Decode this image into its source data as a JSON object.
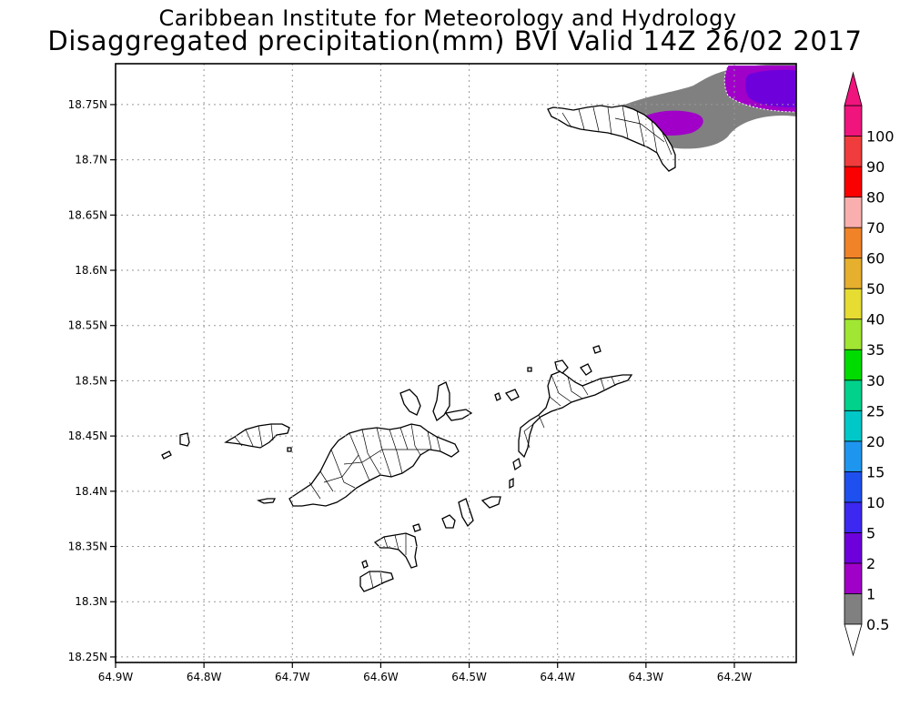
{
  "title": {
    "line1": "Caribbean Institute for Meteorology and Hydrology",
    "line2": "Disaggregated precipitation(mm) BVI Valid 14Z 26/02 2017"
  },
  "map": {
    "lon_range": [
      -64.9,
      -64.13
    ],
    "lat_range": [
      18.245,
      18.787
    ],
    "x_ticks": [
      {
        "value": -64.9,
        "label": "64.9W"
      },
      {
        "value": -64.8,
        "label": "64.8W"
      },
      {
        "value": -64.7,
        "label": "64.7W"
      },
      {
        "value": -64.6,
        "label": "64.6W"
      },
      {
        "value": -64.5,
        "label": "64.5W"
      },
      {
        "value": -64.4,
        "label": "64.4W"
      },
      {
        "value": -64.3,
        "label": "64.3W"
      },
      {
        "value": -64.2,
        "label": "64.2W"
      }
    ],
    "y_ticks": [
      {
        "value": 18.25,
        "label": "18.25N"
      },
      {
        "value": 18.3,
        "label": "18.3N"
      },
      {
        "value": 18.35,
        "label": "18.35N"
      },
      {
        "value": 18.4,
        "label": "18.4N"
      },
      {
        "value": 18.45,
        "label": "18.45N"
      },
      {
        "value": 18.5,
        "label": "18.5N"
      },
      {
        "value": 18.55,
        "label": "18.55N"
      },
      {
        "value": 18.6,
        "label": "18.6N"
      },
      {
        "value": 18.65,
        "label": "18.65N"
      },
      {
        "value": 18.7,
        "label": "18.7N"
      },
      {
        "value": 18.75,
        "label": "18.75N"
      }
    ],
    "grid": "dotted"
  },
  "colorbar": {
    "levels": [
      "0.5",
      "1",
      "2",
      "5",
      "10",
      "15",
      "20",
      "25",
      "30",
      "35",
      "40",
      "50",
      "60",
      "70",
      "80",
      "90",
      "100"
    ],
    "colors": [
      "#808080",
      "#a000c8",
      "#6e00dc",
      "#3c28f0",
      "#1e50f0",
      "#1e96f0",
      "#00c8c8",
      "#00d28c",
      "#00dc00",
      "#a0e632",
      "#e6dc32",
      "#e6af2d",
      "#f08228",
      "#faafaf",
      "#fa0000",
      "#f03c3c",
      "#f0147d"
    ]
  },
  "precip_areas": [
    {
      "level": "0.5-1",
      "color": "#808080"
    },
    {
      "level": "1-2",
      "color": "#a000c8"
    },
    {
      "level": "2-5",
      "color": "#6e00dc"
    }
  ]
}
